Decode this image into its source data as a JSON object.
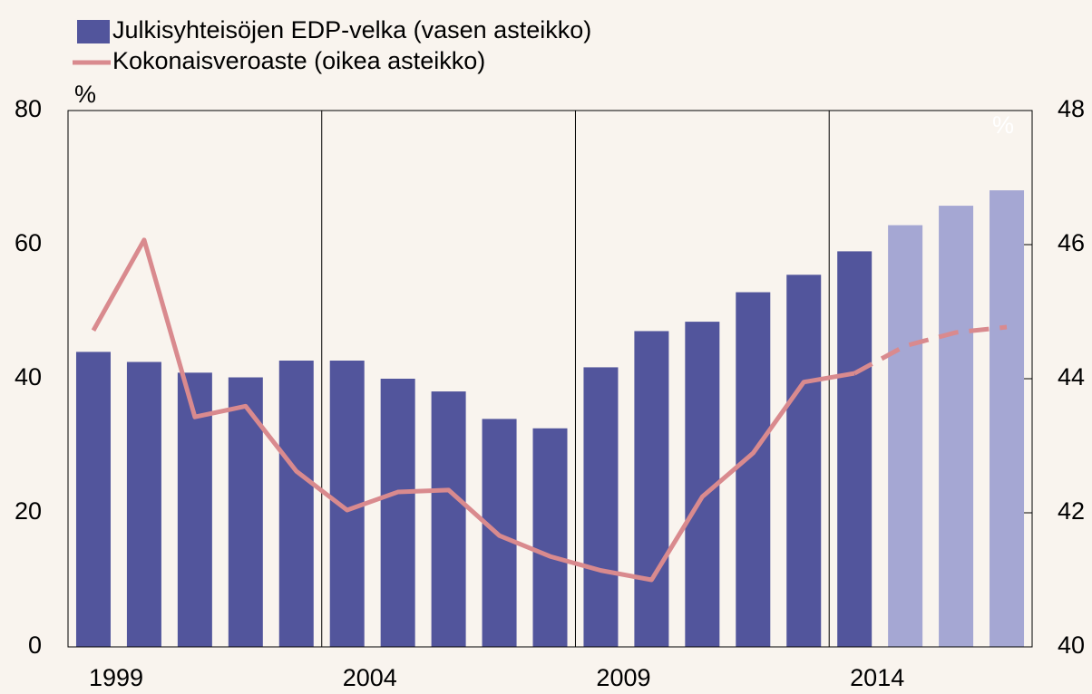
{
  "chart_data": {
    "type": "bar",
    "categories": [
      "1999",
      null,
      null,
      null,
      null,
      "2004",
      null,
      null,
      null,
      null,
      "2009",
      null,
      null,
      null,
      null,
      "2014",
      null,
      null,
      null
    ],
    "series": [
      {
        "name": "Julkisyhteisöjen EDP-velka (vasen asteikko)",
        "type": "bar",
        "color": "#52559c",
        "forecast_color": "#a5a7d3",
        "forecast_from": 16,
        "values": [
          44.0,
          42.5,
          40.9,
          40.2,
          42.7,
          42.7,
          40.0,
          38.1,
          34.0,
          32.6,
          41.7,
          47.1,
          48.5,
          52.9,
          55.5,
          59.0,
          62.9,
          65.8,
          68.1
        ]
      },
      {
        "name": "Kokonaisveroaste (oikea asteikko)",
        "type": "line",
        "axis": "y2",
        "color": "#d98a8e",
        "dashed_from": 15,
        "values": [
          44.72,
          46.07,
          43.43,
          43.59,
          42.62,
          42.04,
          42.31,
          42.34,
          41.66,
          41.35,
          41.14,
          41.0,
          42.24,
          42.89,
          43.95,
          44.08,
          44.49,
          44.69,
          44.77
        ]
      }
    ],
    "y_unit": "%",
    "y2_unit": "%",
    "ylim": [
      0,
      80
    ],
    "yticks": [
      0,
      20,
      40,
      60,
      80
    ],
    "y2lim": [
      40,
      48
    ],
    "y2ticks": [
      40,
      42,
      44,
      46,
      48
    ],
    "vertical_grid": true
  }
}
